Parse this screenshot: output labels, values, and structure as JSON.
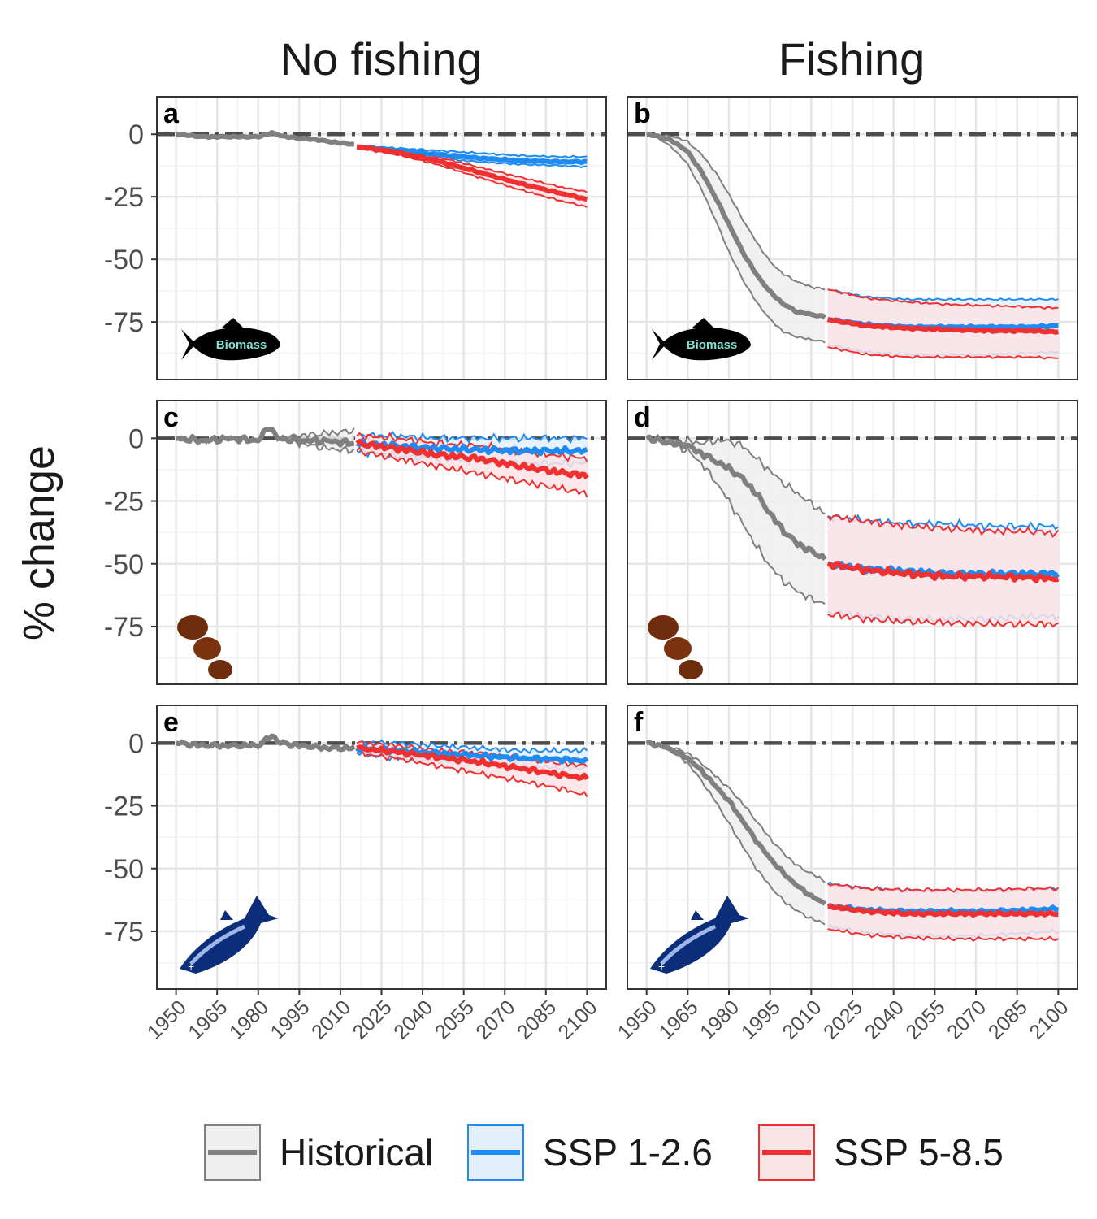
{
  "colors": {
    "historical": "#808080",
    "historical_fill": "#efefef",
    "ssp126": "#1f8bf0",
    "ssp126_fill": "#e3f0fc",
    "ssp585": "#f03030",
    "ssp585_fill": "#fbe4e6",
    "grid_major": "#e6e6e6",
    "grid_minor": "#f3f3f3",
    "zero_line": "#4d4d4d",
    "panel_border": "#333333",
    "overlap_fill": "#ebdfe6"
  },
  "chart_data": {
    "type": "line",
    "column_titles": [
      "No fishing",
      "Fishing"
    ],
    "ylabel": "% change",
    "xlabel": "",
    "x_ticks": [
      1950,
      1965,
      1980,
      1995,
      2010,
      2025,
      2040,
      2055,
      2070,
      2085,
      2100
    ],
    "y_ticks": [
      0,
      -25,
      -50,
      -75
    ],
    "xlim": [
      1943,
      2107
    ],
    "ylim": [
      -98,
      15
    ],
    "reference_line": 0,
    "grid": true,
    "legend": {
      "position": "bottom",
      "entries": [
        "Historical",
        "SSP 1-2.6",
        "SSP 5-8.5"
      ]
    },
    "panels": [
      {
        "tag": "a",
        "column": "No fishing",
        "row": 1,
        "icon": "fish-biomass-icon",
        "icon_text": "Biomass",
        "series": [
          {
            "name": "Historical",
            "x": [
              1950,
              1960,
              1970,
              1980,
              1985,
              1990,
              2000,
              2010,
              2015
            ],
            "mean": [
              0,
              -1,
              -1,
              -1,
              0.5,
              -1,
              -2,
              -3.5,
              -4
            ],
            "low": [
              0,
              -1,
              -1,
              -1,
              0.5,
              -1,
              -2,
              -3.5,
              -4
            ],
            "high": [
              0,
              -1,
              -1,
              -1,
              0.5,
              -1,
              -2,
              -3.5,
              -4
            ]
          },
          {
            "name": "SSP 1-2.6",
            "x": [
              2016,
              2030,
              2045,
              2060,
              2075,
              2090,
              2100
            ],
            "mean": [
              -5,
              -6.5,
              -8,
              -9.5,
              -10.5,
              -11,
              -11
            ],
            "low": [
              -5.5,
              -7.5,
              -9.5,
              -11,
              -12,
              -12.5,
              -13
            ],
            "high": [
              -4.5,
              -5.5,
              -6.5,
              -7.5,
              -8.5,
              -9,
              -9
            ]
          },
          {
            "name": "SSP 5-8.5",
            "x": [
              2016,
              2030,
              2045,
              2060,
              2075,
              2090,
              2100
            ],
            "mean": [
              -5,
              -7,
              -10.5,
              -15,
              -19.5,
              -23.5,
              -26
            ],
            "low": [
              -5.5,
              -8,
              -12,
              -17,
              -22,
              -26.5,
              -29
            ],
            "high": [
              -4.5,
              -6,
              -9,
              -13,
              -17,
              -21,
              -23
            ]
          }
        ]
      },
      {
        "tag": "b",
        "column": "Fishing",
        "row": 1,
        "icon": "fish-biomass-icon",
        "icon_text": "Biomass",
        "series": [
          {
            "name": "Historical",
            "x": [
              1950,
              1955,
              1960,
              1965,
              1970,
              1975,
              1980,
              1985,
              1990,
              1995,
              2000,
              2005,
              2010,
              2015
            ],
            "mean": [
              0,
              -1,
              -3,
              -7,
              -15,
              -25,
              -36,
              -47,
              -56,
              -63,
              -68,
              -71,
              -72,
              -73
            ],
            "low": [
              0,
              -2,
              -6,
              -12,
              -22,
              -34,
              -47,
              -58,
              -67,
              -74,
              -79,
              -81,
              -82,
              -83
            ],
            "high": [
              0,
              -0.5,
              -1,
              -3,
              -8,
              -15,
              -24,
              -34,
              -43,
              -51,
              -56,
              -59,
              -61,
              -62
            ]
          },
          {
            "name": "SSP 1-2.6",
            "x": [
              2016,
              2030,
              2045,
              2060,
              2075,
              2090,
              2100
            ],
            "mean": [
              -74,
              -76,
              -77,
              -77,
              -77,
              -77,
              -76.5
            ],
            "low": [
              -84,
              -87,
              -88,
              -88,
              -88,
              -87.5,
              -87
            ],
            "high": [
              -62,
              -65,
              -66,
              -66,
              -66,
              -66,
              -66
            ]
          },
          {
            "name": "SSP 5-8.5",
            "x": [
              2016,
              2030,
              2045,
              2060,
              2075,
              2090,
              2100
            ],
            "mean": [
              -74,
              -76.5,
              -77.5,
              -78,
              -78.5,
              -78.5,
              -79
            ],
            "low": [
              -85,
              -88,
              -89,
              -89,
              -89,
              -89,
              -89.5
            ],
            "high": [
              -62,
              -65.5,
              -67,
              -68,
              -68.5,
              -69,
              -69.5
            ]
          }
        ]
      },
      {
        "tag": "c",
        "column": "No fishing",
        "row": 2,
        "icon": "plankton-icon",
        "series": [
          {
            "name": "Historical",
            "x": [
              1950,
              1960,
              1970,
              1980,
              1984,
              1987,
              1995,
              2005,
              2015
            ],
            "mean": [
              0,
              -1,
              0,
              -1,
              5,
              0,
              -1,
              -1,
              -2
            ],
            "low": [
              0,
              -1,
              0,
              -1,
              5,
              0,
              -2,
              -4,
              -5
            ],
            "high": [
              0,
              -1,
              0,
              -1,
              5,
              0,
              1,
              2,
              3
            ]
          },
          {
            "name": "SSP 1-2.6",
            "x": [
              2016,
              2030,
              2045,
              2060,
              2075,
              2090,
              2100
            ],
            "mean": [
              -2,
              -3,
              -4,
              -4.5,
              -5,
              -5,
              -5
            ],
            "low": [
              -5,
              -7,
              -8,
              -9,
              -10,
              -10,
              -10
            ],
            "high": [
              1,
              1,
              0,
              0,
              0,
              0,
              0
            ]
          },
          {
            "name": "SSP 5-8.5",
            "x": [
              2016,
              2030,
              2045,
              2060,
              2075,
              2090,
              2100
            ],
            "mean": [
              -2,
              -4,
              -6.5,
              -8,
              -11,
              -13.5,
              -15
            ],
            "low": [
              -5,
              -8,
              -11,
              -14,
              -17,
              -20,
              -22
            ],
            "high": [
              1,
              0,
              -2,
              -3,
              -5,
              -7,
              -8
            ]
          }
        ]
      },
      {
        "tag": "d",
        "column": "Fishing",
        "row": 2,
        "icon": "plankton-icon",
        "series": [
          {
            "name": "Historical",
            "x": [
              1950,
              1955,
              1960,
              1965,
              1970,
              1975,
              1980,
              1985,
              1990,
              1995,
              2000,
              2005,
              2010,
              2015
            ],
            "mean": [
              0,
              -1,
              -2,
              -3,
              -6,
              -9,
              -12,
              -16,
              -22,
              -30,
              -37,
              -42,
              -45,
              -48
            ],
            "low": [
              0,
              -1,
              -3,
              -5,
              -10,
              -17,
              -25,
              -34,
              -43,
              -51,
              -57,
              -61,
              -64,
              -66
            ],
            "high": [
              0,
              0,
              -1,
              -1,
              -2,
              -1,
              -1,
              -3,
              -8,
              -13,
              -18,
              -22,
              -26,
              -30
            ]
          },
          {
            "name": "SSP 1-2.6",
            "x": [
              2016,
              2030,
              2045,
              2060,
              2075,
              2090,
              2100
            ],
            "mean": [
              -50,
              -52,
              -53,
              -54,
              -54,
              -54,
              -54
            ],
            "low": [
              -69,
              -71,
              -72,
              -72,
              -72,
              -71,
              -71
            ],
            "high": [
              -31,
              -33,
              -34,
              -34,
              -35,
              -35,
              -35
            ]
          },
          {
            "name": "SSP 5-8.5",
            "x": [
              2016,
              2030,
              2045,
              2060,
              2075,
              2090,
              2100
            ],
            "mean": [
              -50,
              -52.5,
              -54,
              -55,
              -55,
              -55.5,
              -56
            ],
            "low": [
              -70,
              -72,
              -73,
              -73.5,
              -74,
              -74,
              -74
            ],
            "high": [
              -31,
              -33,
              -35,
              -36,
              -37,
              -37,
              -38
            ]
          }
        ]
      },
      {
        "tag": "e",
        "column": "No fishing",
        "row": 3,
        "icon": "fish-outline-icon",
        "series": [
          {
            "name": "Historical",
            "x": [
              1950,
              1960,
              1970,
              1980,
              1985,
              1988,
              1995,
              2005,
              2015
            ],
            "mean": [
              0,
              -1,
              -1,
              -1,
              3,
              0,
              -1,
              -2,
              -2
            ],
            "low": [
              0,
              -1,
              -1,
              -1,
              3,
              0,
              -1,
              -2,
              -2
            ],
            "high": [
              0,
              -1,
              -1,
              -1,
              3,
              0,
              -1,
              -2,
              -2
            ]
          },
          {
            "name": "SSP 1-2.6",
            "x": [
              2016,
              2030,
              2045,
              2060,
              2075,
              2090,
              2100
            ],
            "mean": [
              -2,
              -3,
              -4,
              -5,
              -6,
              -6.5,
              -7
            ],
            "low": [
              -4,
              -6,
              -7,
              -8,
              -9,
              -10,
              -10
            ],
            "high": [
              0,
              0,
              -1,
              -2,
              -3,
              -3,
              -3
            ]
          },
          {
            "name": "SSP 5-8.5",
            "x": [
              2016,
              2030,
              2045,
              2060,
              2075,
              2090,
              2100
            ],
            "mean": [
              -2,
              -3.5,
              -5.5,
              -7.5,
              -10,
              -12.5,
              -14
            ],
            "low": [
              -4,
              -6,
              -9,
              -12,
              -15,
              -18,
              -21
            ],
            "high": [
              0,
              -1,
              -3,
              -4,
              -6,
              -8,
              -9
            ]
          }
        ]
      },
      {
        "tag": "f",
        "column": "Fishing",
        "row": 3,
        "icon": "fish-outline-icon",
        "series": [
          {
            "name": "Historical",
            "x": [
              1950,
              1955,
              1960,
              1965,
              1970,
              1975,
              1980,
              1985,
              1990,
              1995,
              2000,
              2005,
              2010,
              2015
            ],
            "mean": [
              0,
              -1,
              -3,
              -6,
              -11,
              -17,
              -23,
              -31,
              -39,
              -46,
              -52,
              -57,
              -61,
              -64
            ],
            "low": [
              0,
              -1,
              -4,
              -8,
              -15,
              -23,
              -32,
              -41,
              -50,
              -57,
              -63,
              -67,
              -70,
              -72
            ],
            "high": [
              0,
              -1,
              -2,
              -4,
              -8,
              -13,
              -18,
              -24,
              -31,
              -38,
              -44,
              -49,
              -52,
              -55
            ]
          },
          {
            "name": "SSP 1-2.6",
            "x": [
              2016,
              2030,
              2045,
              2060,
              2075,
              2090,
              2100
            ],
            "mean": [
              -65,
              -66.5,
              -67,
              -67,
              -67,
              -66.5,
              -66
            ],
            "low": [
              -73,
              -75.5,
              -76.5,
              -77,
              -76.5,
              -75.5,
              -75
            ],
            "high": [
              -56,
              -58,
              -59,
              -59,
              -59,
              -58.5,
              -58
            ]
          },
          {
            "name": "SSP 5-8.5",
            "x": [
              2016,
              2030,
              2045,
              2060,
              2075,
              2090,
              2100
            ],
            "mean": [
              -65,
              -67,
              -68,
              -68,
              -68,
              -68,
              -68
            ],
            "low": [
              -74,
              -76.5,
              -77.5,
              -78,
              -78,
              -78,
              -78
            ],
            "high": [
              -56,
              -58,
              -58.5,
              -58.5,
              -58.5,
              -58,
              -58
            ]
          }
        ]
      }
    ]
  }
}
